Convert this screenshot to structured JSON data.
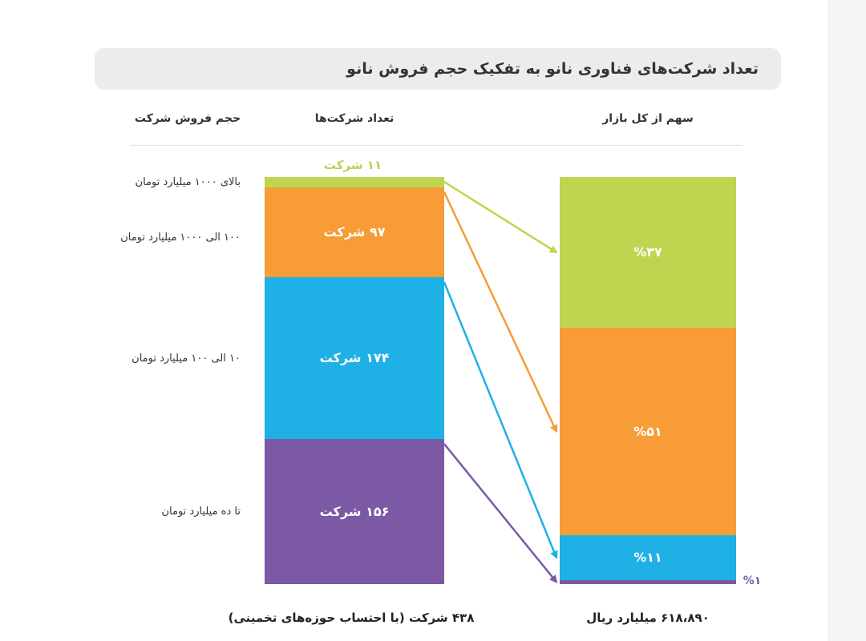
{
  "title": "تعداد شرکت‌های فناوری نانو به تفکیک حجم فروش نانو",
  "headers": {
    "sales_volume": "حجم فروش شرکت",
    "company_count": "تعداد شرکت‌ها",
    "market_share": "سهم از کل بازار"
  },
  "footer": {
    "companies_total": "۴۳۸ شرکت (با احتساب حوزه‌های تخمینی)",
    "market_total": "۶۱۸،۸۹۰ میلیارد ریال"
  },
  "chart_data": {
    "type": "bar",
    "stacked": true,
    "categories": [
      "بالای ۱۰۰۰ میلیارد تومان",
      "۱۰۰ الی ۱۰۰۰ میلیارد تومان",
      "۱۰ الی ۱۰۰ میلیارد تومان",
      "تا ده میلیارد تومان"
    ],
    "company_counts": [
      11,
      97,
      174,
      156
    ],
    "company_count_labels": [
      "۱۱ شرکت",
      "۹۷ شرکت",
      "۱۷۴ شرکت",
      "۱۵۶ شرکت"
    ],
    "market_share_percent": [
      37,
      51,
      11,
      1
    ],
    "market_share_labels": [
      "%۳۷",
      "%۵۱",
      "%۱۱",
      "%۱"
    ],
    "colors": [
      "#bfd44f",
      "#f79c36",
      "#1fb0e6",
      "#7b59a5"
    ]
  }
}
